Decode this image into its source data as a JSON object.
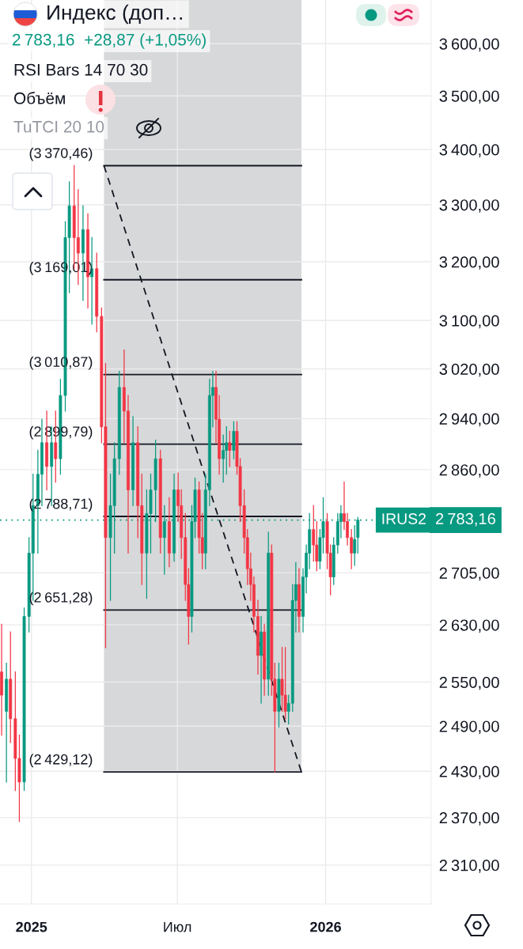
{
  "chart_data": {
    "type": "candlestick",
    "title": "Индекс (доп…",
    "subtitle": "2 783,16  +28,87 (+1,05%)",
    "x": [
      "2024-11-25",
      "2024-12-01",
      "2024-12-06",
      "2024-12-12",
      "2024-12-17",
      "2024-12-23",
      "2024-12-29",
      "2025-01-03",
      "2025-01-09",
      "2025-01-14",
      "2025-01-20",
      "2025-01-26",
      "2025-01-31",
      "2025-02-06",
      "2025-02-12",
      "2025-02-17",
      "2025-02-23",
      "2025-02-28",
      "2025-03-06",
      "2025-03-12",
      "2025-03-17",
      "2025-03-23",
      "2025-03-29",
      "2025-04-03",
      "2025-04-09",
      "2025-04-14",
      "2025-04-20",
      "2025-04-26",
      "2025-05-01",
      "2025-05-07",
      "2025-05-13",
      "2025-05-18",
      "2025-05-24",
      "2025-05-29",
      "2025-06-04",
      "2025-06-10",
      "2025-06-15",
      "2025-06-21",
      "2025-06-27",
      "2025-07-02",
      "2025-07-06",
      "2025-07-11",
      "2025-07-15",
      "2025-07-19",
      "2025-07-23",
      "2025-07-28",
      "2025-08-01",
      "2025-08-05",
      "2025-08-10",
      "2025-08-14",
      "2025-08-18",
      "2025-08-22",
      "2025-08-27",
      "2025-08-31",
      "2025-09-04",
      "2025-09-09",
      "2025-09-13",
      "2025-09-17",
      "2025-09-22",
      "2025-09-26",
      "2025-09-30",
      "2025-10-04",
      "2025-10-09",
      "2025-10-13",
      "2025-10-17",
      "2025-10-22",
      "2025-10-26",
      "2025-10-30",
      "2025-11-04",
      "2025-11-08",
      "2025-11-12",
      "2025-11-16",
      "2025-11-21",
      "2025-11-25",
      "2025-11-29",
      "2025-12-04",
      "2025-12-08",
      "2025-12-12",
      "2025-12-17",
      "2025-12-21",
      "2025-12-25",
      "2025-12-29",
      "2026-01-03",
      "2026-01-07",
      "2026-01-11",
      "2026-01-16",
      "2026-01-20",
      "2026-01-24",
      "2026-01-28",
      "2026-02-02",
      "2026-02-06",
      "2026-02-10"
    ],
    "ohlc": [
      [
        2564,
        2631,
        2478,
        2532
      ],
      [
        2510,
        2576,
        2416,
        2554
      ],
      [
        2554,
        2620,
        2468,
        2500
      ],
      [
        2500,
        2564,
        2405,
        2447
      ],
      [
        2447,
        2478,
        2365,
        2416
      ],
      [
        2416,
        2654,
        2405,
        2642
      ],
      [
        2642,
        2757,
        2620,
        2734
      ],
      [
        2734,
        2853,
        2665,
        2805
      ],
      [
        2805,
        2890,
        2734,
        2853
      ],
      [
        2853,
        2939,
        2805,
        2902
      ],
      [
        2902,
        2952,
        2829,
        2865
      ],
      [
        2865,
        2927,
        2805,
        2902
      ],
      [
        2902,
        2952,
        2841,
        2877
      ],
      [
        2877,
        3003,
        2853,
        2977
      ],
      [
        2977,
        3270,
        2952,
        3242
      ],
      [
        3242,
        3341,
        3147,
        3298
      ],
      [
        3298,
        3370.46,
        3188,
        3242
      ],
      [
        3242,
        3327,
        3161,
        3215
      ],
      [
        3215,
        3298,
        3134,
        3256
      ],
      [
        3256,
        3284,
        3121,
        3174
      ],
      [
        3174,
        3242,
        3094,
        3188
      ],
      [
        3188,
        3215,
        3081,
        3107
      ],
      [
        3107,
        3121,
        2902,
        2927
      ],
      [
        2927,
        3029,
        2598,
        2757
      ],
      [
        2757,
        2853,
        2665,
        2805
      ],
      [
        2805,
        2902,
        2734,
        2877
      ],
      [
        2877,
        3016,
        2853,
        2990
      ],
      [
        2990,
        3051,
        2902,
        2952
      ],
      [
        2952,
        2977,
        2734,
        2829
      ],
      [
        2829,
        2943,
        2805,
        2902
      ],
      [
        2902,
        2927,
        2757,
        2805
      ],
      [
        2805,
        2853,
        2688,
        2734
      ],
      [
        2734,
        2829,
        2668,
        2793
      ],
      [
        2793,
        2853,
        2734,
        2829
      ],
      [
        2829,
        2906,
        2781,
        2877
      ],
      [
        2877,
        2890,
        2734,
        2757
      ],
      [
        2757,
        2805,
        2703,
        2781
      ],
      [
        2781,
        2817,
        2714,
        2734
      ],
      [
        2734,
        2853,
        2722,
        2829
      ],
      [
        2829,
        2855,
        2781,
        2805
      ],
      [
        2805,
        2829,
        2726,
        2757
      ],
      [
        2757,
        2793,
        2665,
        2688
      ],
      [
        2688,
        2711,
        2603,
        2642
      ],
      [
        2642,
        2805,
        2620,
        2781
      ],
      [
        2781,
        2847,
        2757,
        2829
      ],
      [
        2829,
        2841,
        2734,
        2757
      ],
      [
        2757,
        2793,
        2711,
        2734
      ],
      [
        2734,
        2853,
        2711,
        2829
      ],
      [
        2829,
        3003,
        2805,
        2977
      ],
      [
        2977,
        3016,
        2927,
        2990
      ],
      [
        2990,
        3016,
        2902,
        2939
      ],
      [
        2939,
        2977,
        2853,
        2877
      ],
      [
        2877,
        2914,
        2841,
        2890
      ],
      [
        2890,
        2927,
        2853,
        2902
      ],
      [
        2902,
        2920,
        2865,
        2890
      ],
      [
        2890,
        2935,
        2877,
        2920
      ],
      [
        2920,
        2935,
        2853,
        2865
      ],
      [
        2865,
        2877,
        2781,
        2805
      ],
      [
        2805,
        2829,
        2734,
        2757
      ],
      [
        2757,
        2769,
        2688,
        2711
      ],
      [
        2711,
        2734,
        2665,
        2688
      ],
      [
        2688,
        2699,
        2620,
        2642
      ],
      [
        2642,
        2665,
        2561,
        2587
      ],
      [
        2587,
        2642,
        2521,
        2620
      ],
      [
        2620,
        2631,
        2532,
        2554
      ],
      [
        2554,
        2765,
        2532,
        2734
      ],
      [
        2734,
        2746,
        2532,
        2554
      ],
      [
        2554,
        2576,
        2429.12,
        2510
      ],
      [
        2510,
        2576,
        2489,
        2554
      ],
      [
        2554,
        2598,
        2510,
        2532
      ],
      [
        2532,
        2598,
        2500,
        2510
      ],
      [
        2510,
        2532,
        2493,
        2521
      ],
      [
        2521,
        2688,
        2510,
        2665
      ],
      [
        2665,
        2720,
        2620,
        2688
      ],
      [
        2688,
        2711,
        2620,
        2642
      ],
      [
        2642,
        2711,
        2620,
        2699
      ],
      [
        2699,
        2746,
        2676,
        2734
      ],
      [
        2734,
        2793,
        2711,
        2769
      ],
      [
        2769,
        2805,
        2722,
        2746
      ],
      [
        2746,
        2781,
        2708,
        2722
      ],
      [
        2722,
        2769,
        2711,
        2757
      ],
      [
        2757,
        2817,
        2734,
        2781
      ],
      [
        2781,
        2793,
        2711,
        2734
      ],
      [
        2734,
        2746,
        2673,
        2699
      ],
      [
        2699,
        2757,
        2688,
        2746
      ],
      [
        2746,
        2793,
        2734,
        2781
      ],
      [
        2781,
        2805,
        2757,
        2793
      ],
      [
        2793,
        2841,
        2769,
        2781
      ],
      [
        2781,
        2793,
        2746,
        2757
      ],
      [
        2757,
        2769,
        2711,
        2734
      ],
      [
        2734,
        2775,
        2716,
        2754.29
      ],
      [
        2757,
        2787,
        2734,
        2783.16
      ]
    ],
    "colors": [
      "#f23645",
      "#089981",
      "#f23645",
      "#f23645",
      "#f23645",
      "#089981",
      "#089981",
      "#089981",
      "#089981",
      "#089981",
      "#f23645",
      "#089981",
      "#f23645",
      "#089981",
      "#089981",
      "#089981",
      "#f23645",
      "#f23645",
      "#089981",
      "#f23645",
      "#089981",
      "#f23645",
      "#f23645",
      "#f23645",
      "#089981",
      "#089981",
      "#089981",
      "#f23645",
      "#f23645",
      "#089981",
      "#f23645",
      "#f23645",
      "#089981",
      "#089981",
      "#089981",
      "#f23645",
      "#089981",
      "#f23645",
      "#089981",
      "#f23645",
      "#f23645",
      "#f23645",
      "#f23645",
      "#089981",
      "#089981",
      "#f23645",
      "#f23645",
      "#089981",
      "#089981",
      "#089981",
      "#f23645",
      "#f23645",
      "#089981",
      "#089981",
      "#f23645",
      "#089981",
      "#f23645",
      "#f23645",
      "#f23645",
      "#f23645",
      "#f23645",
      "#f23645",
      "#f23645",
      "#089981",
      "#f23645",
      "#089981",
      "#f23645",
      "#f23645",
      "#089981",
      "#f23645",
      "#f23645",
      "#089981",
      "#089981",
      "#089981",
      "#f23645",
      "#089981",
      "#089981",
      "#089981",
      "#f23645",
      "#f23645",
      "#089981",
      "#089981",
      "#f23645",
      "#f23645",
      "#089981",
      "#089981",
      "#089981",
      "#f23645",
      "#f23645",
      "#f23645",
      "#089981",
      "#089981"
    ],
    "series": [
      {
        "type": "line",
        "x": [
          "2025-04-01",
          "2025-12-02"
        ],
        "values": [
          3370.46,
          2429.12
        ],
        "lower": [
          2429.12,
          2429.12
        ],
        "upper": [
          3686,
          3686
        ],
        "color": "#131722",
        "line_style": "dashed"
      },
      {
        "type": "line",
        "x": [
          "2025-04-01",
          "2025-12-02"
        ],
        "values": [
          3370.46,
          3370.46
        ],
        "color": "#131722"
      },
      {
        "type": "line",
        "x": [
          "2025-04-01",
          "2025-12-02"
        ],
        "values": [
          3169.01,
          3169.01
        ],
        "color": "#131722"
      },
      {
        "type": "line",
        "x": [
          "2025-04-01",
          "2025-12-02"
        ],
        "values": [
          3010.87,
          3010.87
        ],
        "color": "#131722"
      },
      {
        "type": "line",
        "x": [
          "2025-04-01",
          "2025-12-02"
        ],
        "values": [
          2899.79,
          2899.79
        ],
        "color": "#131722"
      },
      {
        "type": "line",
        "x": [
          "2025-04-01",
          "2025-12-02"
        ],
        "values": [
          2788.71,
          2788.71
        ],
        "color": "#131722"
      },
      {
        "type": "line",
        "x": [
          "2025-04-01",
          "2025-12-02"
        ],
        "values": [
          2651.28,
          2651.28
        ],
        "color": "#131722"
      },
      {
        "type": "line",
        "x": [
          "2025-04-01",
          "2025-12-02"
        ],
        "values": [
          2429.12,
          2429.12
        ],
        "color": "#131722"
      }
    ],
    "xlim": [
      "2024-11-23",
      "2026-05-12"
    ],
    "ylim": [
      2262,
      3686
    ],
    "log": true,
    "xticks": [
      {
        "value": "2025-01-01",
        "label": "2025"
      },
      {
        "value": "2025-07-01",
        "label": "Июл"
      },
      {
        "value": "2026-01-01",
        "label": "2026"
      }
    ],
    "yticks": [
      {
        "value": 3600,
        "label": "3 600,00"
      },
      {
        "value": 3500,
        "label": "3 500,00"
      },
      {
        "value": 3400,
        "label": "3 400,00"
      },
      {
        "value": 3300,
        "label": "3 300,00"
      },
      {
        "value": 3200,
        "label": "3 200,00"
      },
      {
        "value": 3100,
        "label": "3 100,00"
      },
      {
        "value": 3020,
        "label": "3 020,00"
      },
      {
        "value": 2940,
        "label": "2 940,00"
      },
      {
        "value": 2860,
        "label": "2 860,00"
      },
      {
        "value": 2705,
        "label": "2 705,00"
      },
      {
        "value": 2630,
        "label": "2 630,00"
      },
      {
        "value": 2550,
        "label": "2 550,00"
      },
      {
        "value": 2490,
        "label": "2 490,00"
      },
      {
        "value": 2430,
        "label": "2 430,00"
      },
      {
        "value": 2370,
        "label": "2 370,00"
      },
      {
        "value": 2310,
        "label": "2 310,00"
      }
    ],
    "grid": true,
    "ref_lines": [
      {
        "axis": "y",
        "value": 2783.16,
        "label": "2 783,16",
        "color": "#089981",
        "line_style": "dotted"
      }
    ],
    "annotations": [
      "RSI Bars 14 70 30",
      "Объём",
      "TuTCI 20 10",
      {
        "text": "(3 370,46)",
        "x": "2025-04-01",
        "y": 3370.46
      },
      {
        "text": "(3 169,01)",
        "x": "2025-04-01",
        "y": 3169.01
      },
      {
        "text": "(3 010,87)",
        "x": "2025-04-01",
        "y": 3010.87
      },
      {
        "text": "(2 899,79)",
        "x": "2025-04-01",
        "y": 2899.79
      },
      {
        "text": "(2 788,71)",
        "x": "2025-04-01",
        "y": 2788.71
      },
      {
        "text": "(2 651,28)",
        "x": "2025-04-01",
        "y": 2651.28
      },
      {
        "text": "(2 429,12)",
        "x": "2025-04-01",
        "y": 2429.12
      },
      {
        "text": "IRUS2",
        "y": 2783.16
      }
    ]
  }
}
